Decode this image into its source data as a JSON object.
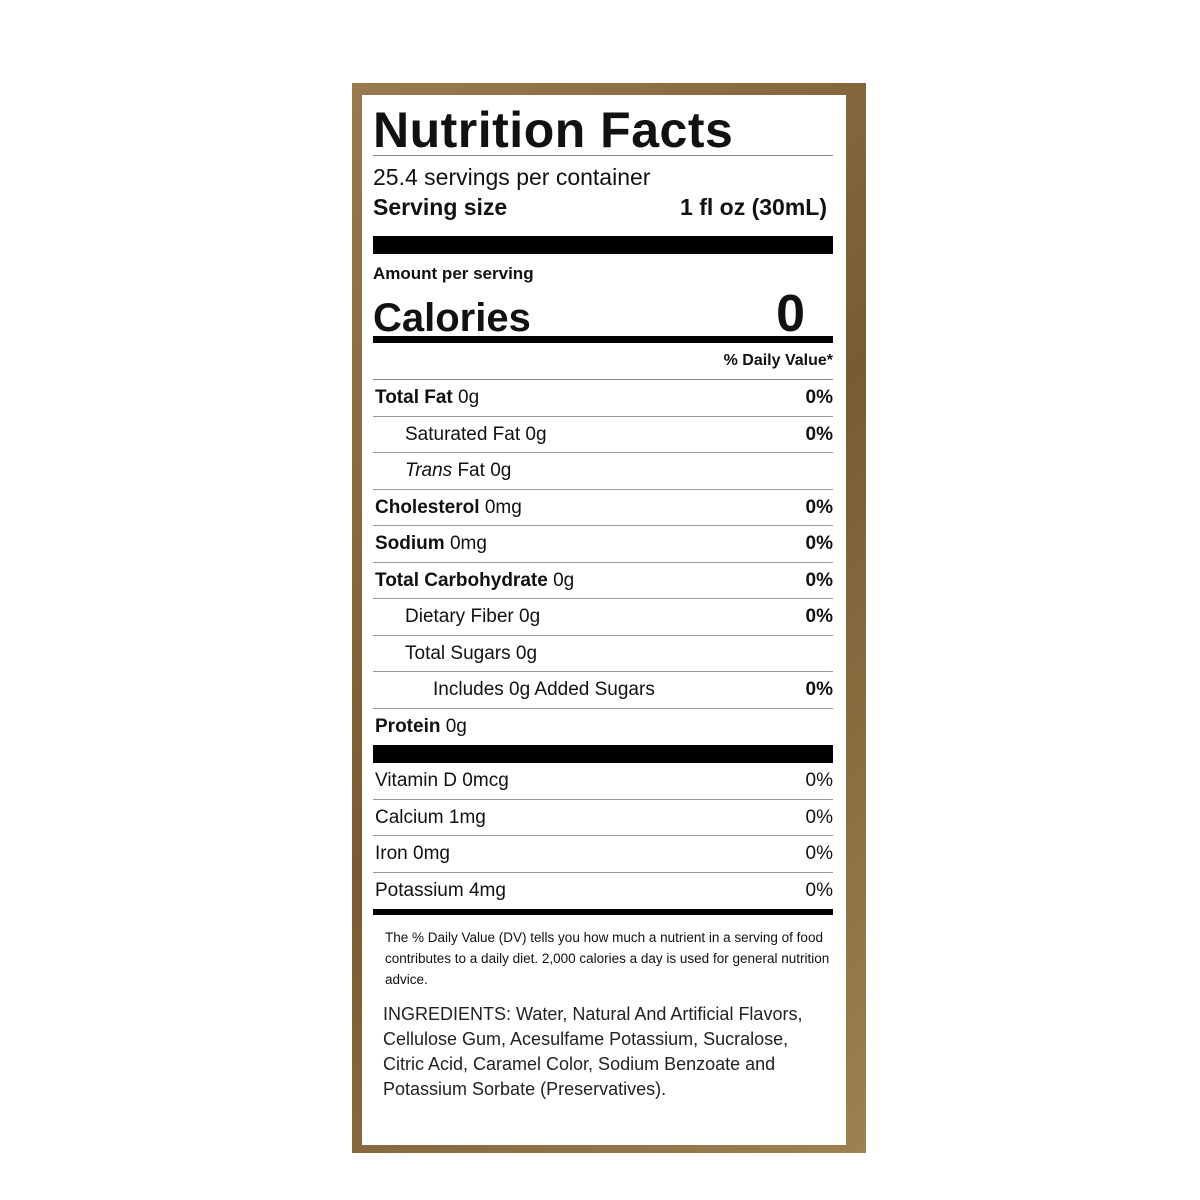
{
  "title": "Nutrition Facts",
  "servings": "25.4 servings per container",
  "serving_size": {
    "label": "Serving size",
    "value": "1 fl oz (30mL)"
  },
  "amount_per_serving": "Amount per serving",
  "calories": {
    "label": "Calories",
    "value": "0"
  },
  "dv_header": "% Daily Value*",
  "nutrients": [
    {
      "name": "Total Fat",
      "amount": "0g",
      "dv": "0%"
    },
    {
      "name": "Saturated Fat",
      "amount": "0g",
      "dv": "0%"
    },
    {
      "name": [
        "Trans",
        "Fat"
      ],
      "amount": "0g"
    },
    {
      "name": "Cholesterol",
      "amount": "0mg",
      "dv": "0%"
    },
    {
      "name": "Sodium",
      "amount": "0mg",
      "dv": "0%"
    },
    {
      "name": "Total Carbohydrate",
      "amount": "0g",
      "dv": "0%"
    },
    {
      "name": "Dietary Fiber",
      "amount": "0g",
      "dv": "0%"
    },
    {
      "name": "Total Sugars",
      "amount": "0g"
    },
    {
      "name": "Includes 0g Added Sugars",
      "dv": "0%"
    },
    {
      "name": "Protein",
      "amount": "0g"
    }
  ],
  "vitamins": [
    {
      "name": "Vitamin D",
      "amount": "0mcg",
      "dv": "0%"
    },
    {
      "name": "Calcium",
      "amount": "1mg",
      "dv": "0%"
    },
    {
      "name": "Iron",
      "amount": "0mg",
      "dv": "0%"
    },
    {
      "name": "Potassium",
      "amount": "4mg",
      "dv": "0%"
    }
  ],
  "footnote": "The % Daily Value (DV) tells you how much a nutrient in a serving of food contributes to a daily diet. 2,000 calories a day is used for general nutrition advice.",
  "ingredients": "INGREDIENTS: Water, Natural And Artificial Flavors, Cellulose Gum, Acesulfame Potassium, Sucralose, Citric Acid, Caramel Color, Sodium Benzoate and Potassium Sorbate (Preservatives)."
}
